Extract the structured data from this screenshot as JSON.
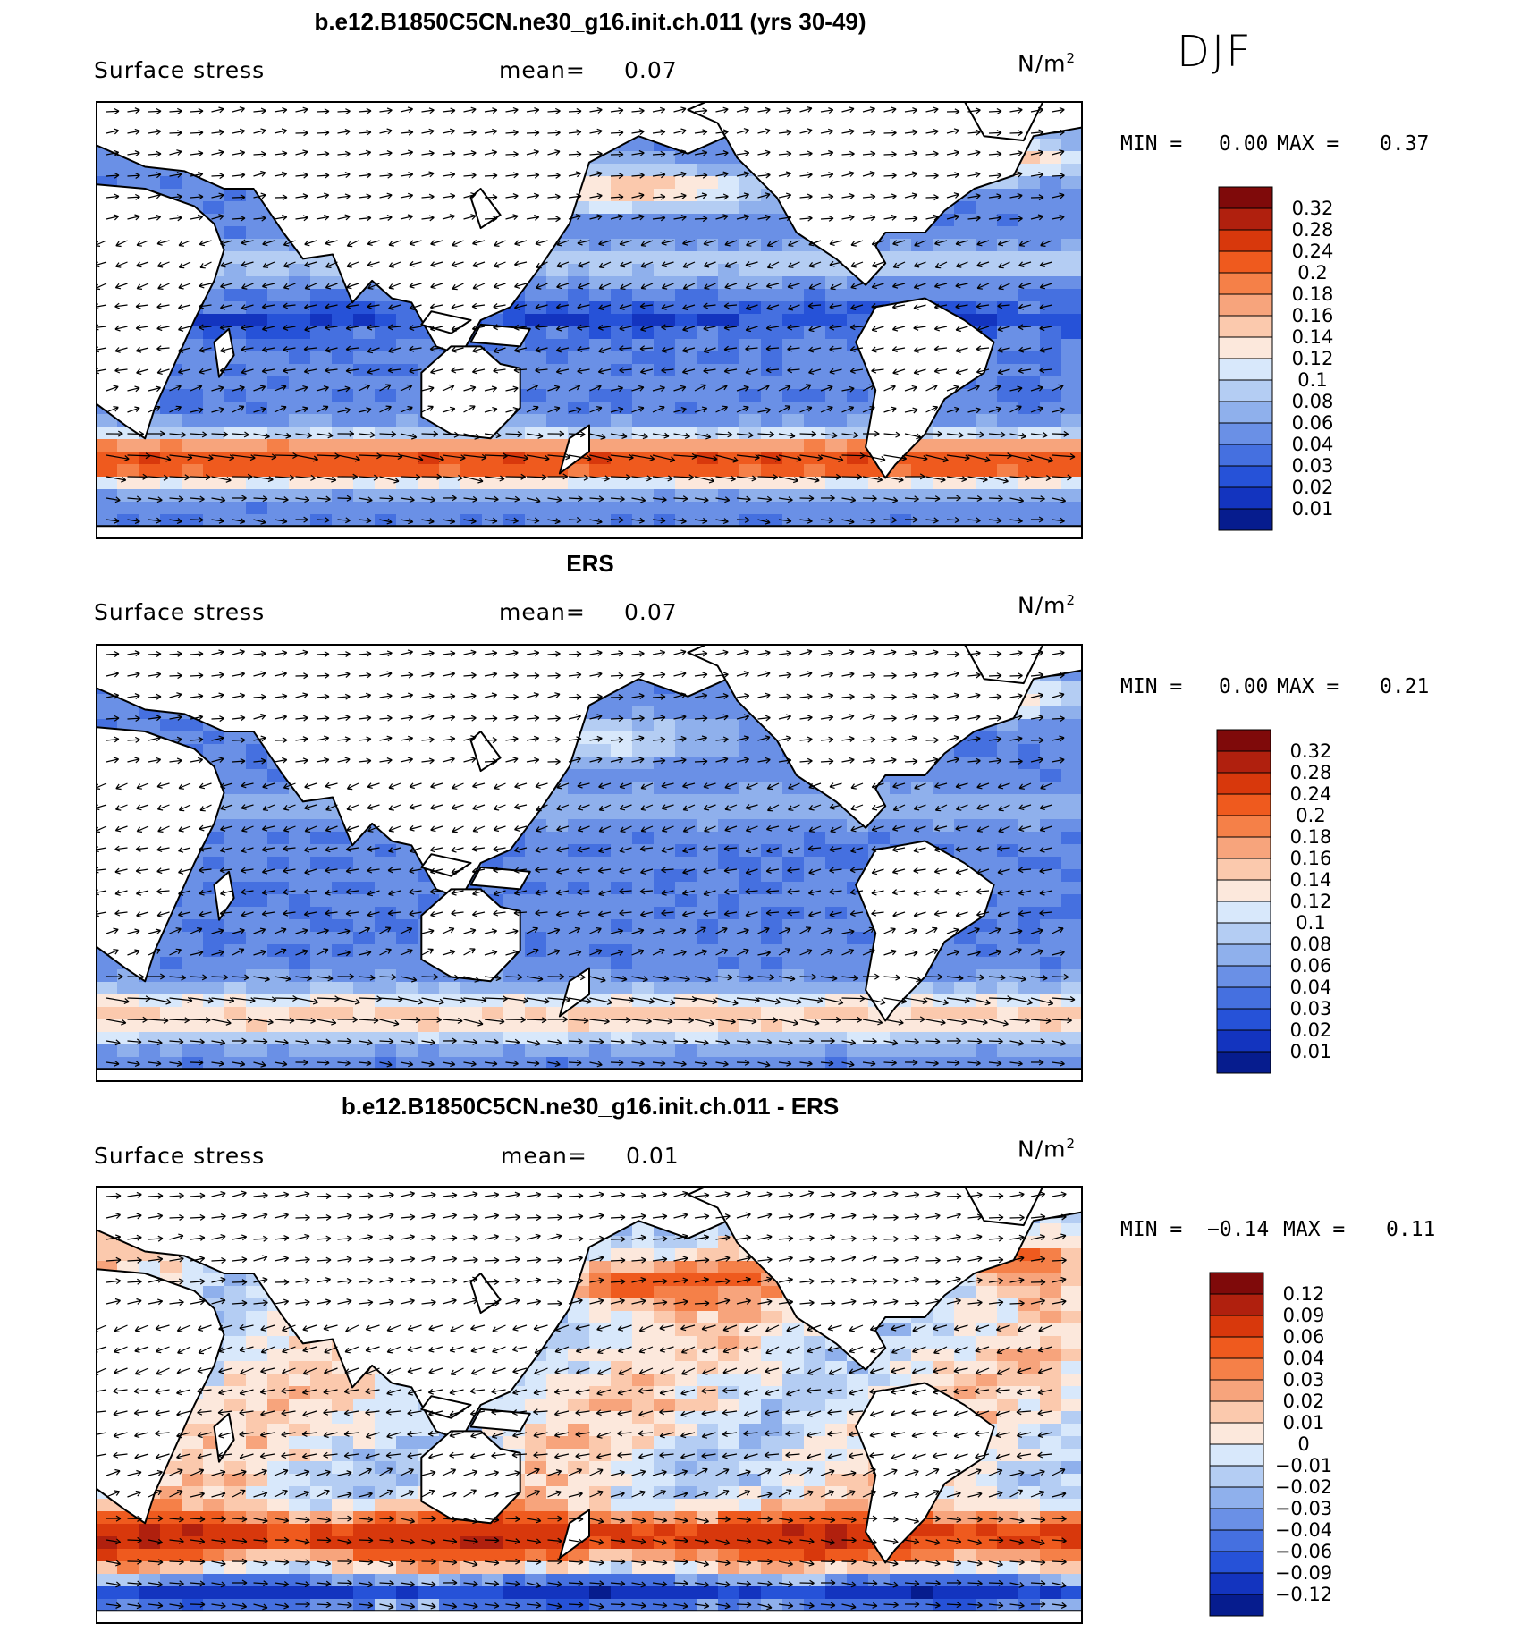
{
  "season": "DJF",
  "panels": [
    {
      "title": "b.e12.B1850C5CN.ne30_g16.init.ch.011 (yrs 30-49)",
      "variable": "Surface stress",
      "mean_label": "mean=",
      "mean_value": "0.07",
      "units": "N/m",
      "units_exp": "2",
      "min_label": "MIN =",
      "min_value": "0.00",
      "max_label": "MAX =",
      "max_value": "0.37",
      "colorbar": {
        "levels": [
          "0.32",
          "0.28",
          "0.24",
          "0.2",
          "0.18",
          "0.16",
          "0.14",
          "0.12",
          "0.1",
          "0.08",
          "0.06",
          "0.04",
          "0.03",
          "0.02",
          "0.01"
        ],
        "colors": [
          "#7f0a0a",
          "#b0200e",
          "#d8380c",
          "#ef5a1e",
          "#f58048",
          "#f7a47c",
          "#fbc9ad",
          "#fce8dc",
          "#d8e8fb",
          "#b4cdf3",
          "#8fb0ec",
          "#6a90e6",
          "#4570e0",
          "#2652d8",
          "#1334bf",
          "#061c8e"
        ]
      }
    },
    {
      "title": "ERS",
      "variable": "Surface stress",
      "mean_label": "mean=",
      "mean_value": "0.07",
      "units": "N/m",
      "units_exp": "2",
      "min_label": "MIN =",
      "min_value": "0.00",
      "max_label": "MAX =",
      "max_value": "0.21",
      "colorbar": {
        "levels": [
          "0.32",
          "0.28",
          "0.24",
          "0.2",
          "0.18",
          "0.16",
          "0.14",
          "0.12",
          "0.1",
          "0.08",
          "0.06",
          "0.04",
          "0.03",
          "0.02",
          "0.01"
        ],
        "colors": [
          "#7f0a0a",
          "#b0200e",
          "#d8380c",
          "#ef5a1e",
          "#f58048",
          "#f7a47c",
          "#fbc9ad",
          "#fce8dc",
          "#d8e8fb",
          "#b4cdf3",
          "#8fb0ec",
          "#6a90e6",
          "#4570e0",
          "#2652d8",
          "#1334bf",
          "#061c8e"
        ]
      }
    },
    {
      "title": "b.e12.B1850C5CN.ne30_g16.init.ch.011 - ERS",
      "variable": "Surface stress",
      "mean_label": "mean=",
      "mean_value": "0.01",
      "units": "N/m",
      "units_exp": "2",
      "min_label": "MIN =",
      "min_value": "−0.14",
      "max_label": "MAX =",
      "max_value": "0.11",
      "colorbar": {
        "levels": [
          "0.12",
          "0.09",
          "0.06",
          "0.04",
          "0.03",
          "0.02",
          "0.01",
          "0",
          "−0.01",
          "−0.02",
          "−0.03",
          "−0.04",
          "−0.06",
          "−0.09",
          "−0.12"
        ],
        "colors": [
          "#7f0a0a",
          "#b0200e",
          "#d8380c",
          "#ef5a1e",
          "#f58048",
          "#f7a47c",
          "#fbc9ad",
          "#fce8dc",
          "#d8e8fb",
          "#b4cdf3",
          "#8fb0ec",
          "#6a90e6",
          "#4570e0",
          "#2652d8",
          "#1334bf",
          "#061c8e"
        ]
      }
    }
  ]
}
